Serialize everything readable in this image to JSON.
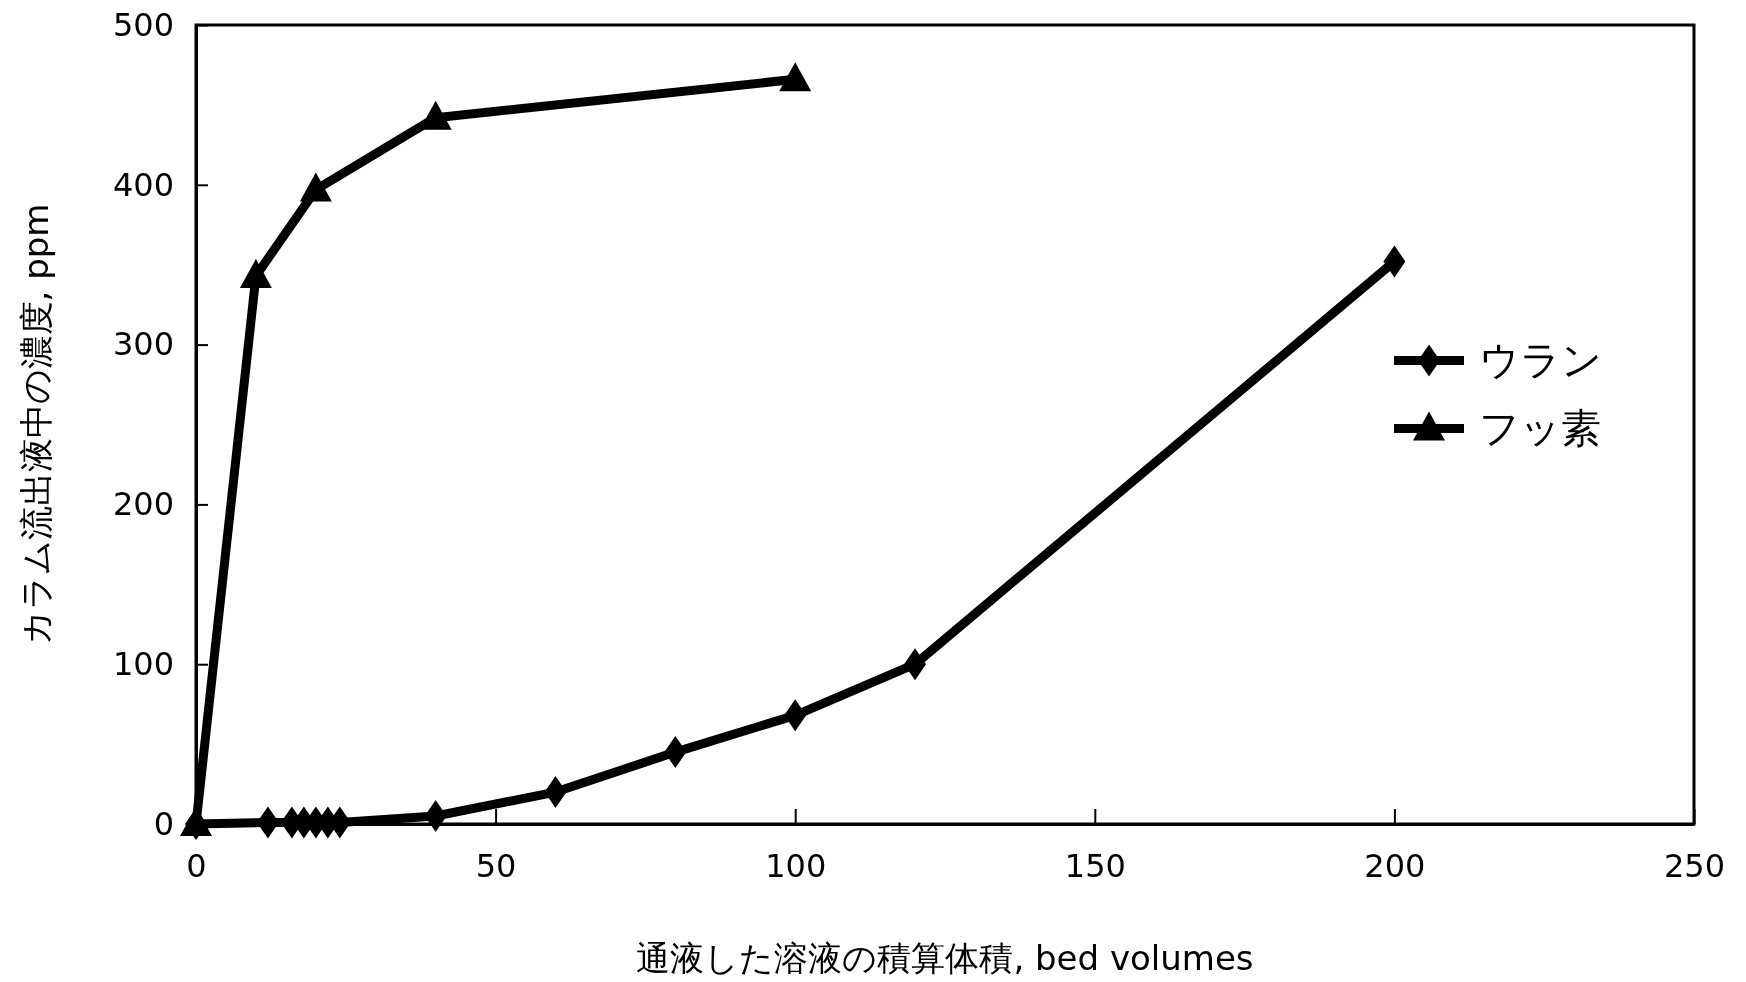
{
  "chart_data": {
    "type": "line",
    "xlabel": "通液した溶液の積算体積, bed volumes",
    "ylabel": "カラム流出液中の濃度, ppm",
    "xlim": [
      0,
      250
    ],
    "xticks": [
      0,
      50,
      100,
      150,
      200,
      250
    ],
    "ylim": [
      0,
      500
    ],
    "yticks": [
      0,
      100,
      200,
      300,
      400,
      500
    ],
    "grid": false,
    "legend": "right",
    "line_style": "solid",
    "series": [
      {
        "name": "ウラン",
        "color": "#000000",
        "marker": "diamond",
        "x": [
          0,
          12,
          16,
          18,
          20,
          22,
          24,
          40,
          60,
          80,
          100,
          120,
          200
        ],
        "values": [
          0,
          1,
          1,
          1,
          1,
          1,
          1,
          5,
          20,
          45,
          68,
          100,
          352
        ]
      },
      {
        "name": "フッ素",
        "color": "#000000",
        "marker": "triangle",
        "x": [
          0,
          10,
          20,
          40,
          100
        ],
        "values": [
          0,
          343,
          397,
          442,
          466
        ]
      }
    ]
  }
}
